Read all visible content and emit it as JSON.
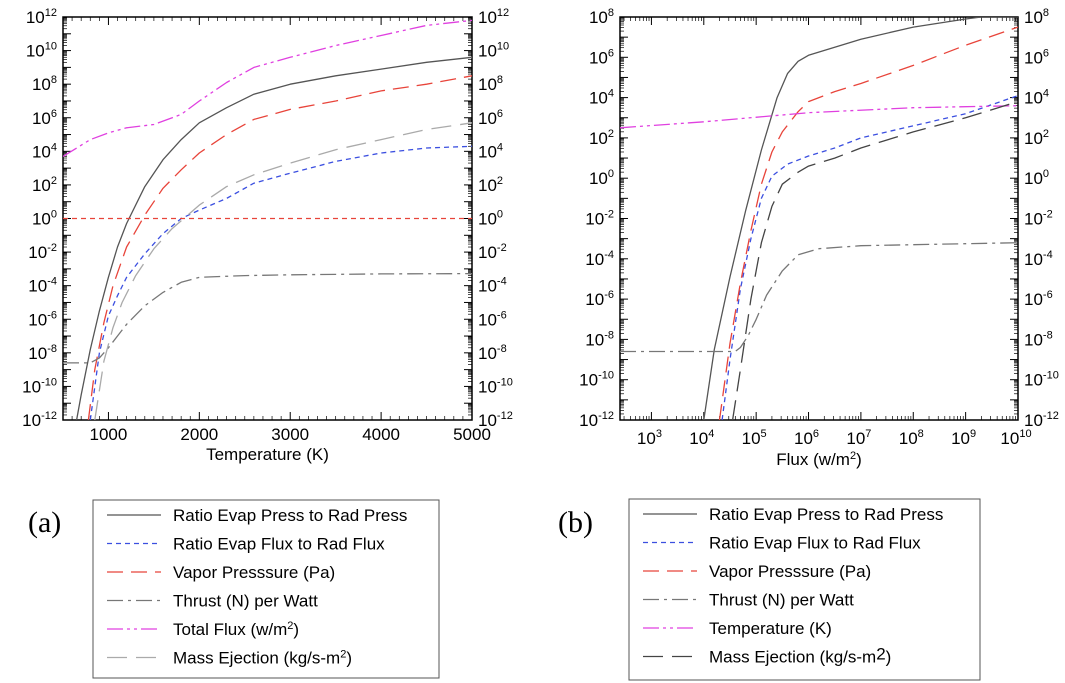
{
  "panels": [
    {
      "tag": "(a)",
      "chart_data": {
        "type": "line",
        "xlabel": "Temperature (K)",
        "ylabel": "",
        "xscale": "linear",
        "yscale": "log",
        "xlim": [
          500,
          5000
        ],
        "ylim_exp": [
          -12,
          12
        ],
        "x_ticks": [
          {
            "value": 1000,
            "label": "1000"
          },
          {
            "value": 2000,
            "label": "2000"
          },
          {
            "value": 3000,
            "label": "3000"
          },
          {
            "value": 4000,
            "label": "4000"
          },
          {
            "value": 5000,
            "label": "5000"
          }
        ],
        "y_ticks": [
          {
            "exp": -12,
            "base": "10",
            "sup": "-12"
          },
          {
            "exp": -10,
            "base": "10",
            "sup": "-10"
          },
          {
            "exp": -8,
            "base": "10",
            "sup": "-8"
          },
          {
            "exp": -6,
            "base": "10",
            "sup": "-6"
          },
          {
            "exp": -4,
            "base": "10",
            "sup": "-4"
          },
          {
            "exp": -2,
            "base": "10",
            "sup": "-2"
          },
          {
            "exp": 0,
            "base": "10",
            "sup": "0"
          },
          {
            "exp": 2,
            "base": "10",
            "sup": "2"
          },
          {
            "exp": 4,
            "base": "10",
            "sup": "4"
          },
          {
            "exp": 6,
            "base": "10",
            "sup": "6"
          },
          {
            "exp": 8,
            "base": "10",
            "sup": "8"
          },
          {
            "exp": 10,
            "base": "10",
            "sup": "10"
          },
          {
            "exp": 12,
            "base": "10",
            "sup": "12"
          }
        ],
        "series": [
          {
            "name": "Ratio Evap Press to Rad Press",
            "color": "#555555",
            "dash": "solid",
            "x": [
              650,
              700,
              800,
              900,
              1000,
              1100,
              1200,
              1400,
              1600,
              1800,
              2000,
              2300,
              2600,
              3000,
              3500,
              4000,
              4500,
              5000
            ],
            "y": [
              -12,
              -10.5,
              -7.8,
              -5.5,
              -3.5,
              -1.7,
              -0.3,
              1.9,
              3.5,
              4.7,
              5.7,
              6.6,
              7.4,
              8.0,
              8.5,
              8.9,
              9.3,
              9.6
            ]
          },
          {
            "name": "Ratio Evap Flux to Rad Flux",
            "color": "#3b4fe0",
            "dash": "blue",
            "x": [
              800,
              900,
              1000,
              1100,
              1200,
              1400,
              1600,
              1800,
              2000,
              2300,
              2600,
              3000,
              3500,
              4000,
              4500,
              5000
            ],
            "y": [
              -12,
              -8,
              -5.8,
              -4.6,
              -3.5,
              -2.1,
              -0.9,
              0,
              0.5,
              1.2,
              2.1,
              2.7,
              3.4,
              3.9,
              4.2,
              4.3
            ]
          },
          {
            "name": "Vapor Presssure (Pa)",
            "color": "#e8443a",
            "dash": "red",
            "x": [
              780,
              850,
              950,
              1050,
              1200,
              1400,
              1600,
              1800,
              2000,
              2300,
              2600,
              3000,
              3500,
              4000,
              4500,
              5000
            ],
            "y": [
              -12,
              -9,
              -6.2,
              -4.0,
              -1.7,
              0.2,
              1.8,
              2.9,
              3.9,
              5.0,
              5.9,
              6.5,
              7.0,
              7.6,
              8.0,
              8.5
            ]
          },
          {
            "name": "Thrust (N) per Watt",
            "color": "#777777",
            "dash": "dashdot",
            "x": [
              500,
              800,
              900,
              1000,
              1100,
              1200,
              1400,
              1600,
              1800,
              2000,
              2500,
              3000,
              4000,
              5000
            ],
            "y": [
              -8.6,
              -8.6,
              -8.3,
              -7.7,
              -7.0,
              -6.3,
              -5.2,
              -4.4,
              -3.8,
              -3.5,
              -3.4,
              -3.35,
              -3.3,
              -3.28
            ]
          },
          {
            "name": "Total Flux (w/m²)",
            "color": "#e040e0",
            "dash": "dashdotdot",
            "x": [
              500,
              800,
              1000,
              1200,
              1500,
              1800,
              2000,
              2300,
              2600,
              3000,
              3500,
              4000,
              4500,
              5000
            ],
            "y": [
              3.7,
              4.7,
              5.1,
              5.4,
              5.6,
              6.2,
              7.0,
              8.1,
              9.0,
              9.6,
              10.3,
              10.9,
              11.5,
              11.8
            ]
          },
          {
            "name": "Mass Ejection (kg/s-m²)",
            "color": "#aaaaaa",
            "dash": "longdash",
            "x": [
              850,
              950,
              1050,
              1150,
              1300,
              1500,
              1700,
              2000,
              2300,
              2600,
              3000,
              3500,
              4000,
              4500,
              5000
            ],
            "y": [
              -12,
              -8.5,
              -6.5,
              -5.0,
              -3.4,
              -1.8,
              -0.6,
              0.8,
              1.9,
              2.6,
              3.3,
              4.1,
              4.7,
              5.3,
              5.7
            ]
          },
          {
            "name": "",
            "color": "#e8443a",
            "dash": "reddot",
            "x": [
              500,
              5000
            ],
            "y": [
              0,
              0
            ]
          }
        ]
      },
      "legend": {
        "entries": [
          {
            "label": "Ratio Evap Press to Rad Press"
          },
          {
            "label": "Ratio Evap Flux to Rad Flux"
          },
          {
            "label": "Vapor Presssure (Pa)"
          },
          {
            "label": "Thrust (N) per Watt"
          },
          {
            "label": "Total Flux (w/m",
            "sup": "2",
            "tail": ")"
          },
          {
            "label": "Mass Ejection (kg/s-m",
            "sup": "2",
            "tail": ")"
          }
        ]
      }
    },
    {
      "tag": "(b)",
      "chart_data": {
        "type": "line",
        "xlabel": "Flux (w/m",
        "xlabel_sup": "2",
        "xlabel_tail": ")",
        "ylabel": "",
        "xscale": "log",
        "yscale": "log",
        "xlim_exp": [
          2.4,
          10
        ],
        "ylim_exp": [
          -12,
          8
        ],
        "x_ticks": [
          {
            "exp": 3,
            "base": "10",
            "sup": "3"
          },
          {
            "exp": 4,
            "base": "10",
            "sup": "4"
          },
          {
            "exp": 5,
            "base": "10",
            "sup": "5"
          },
          {
            "exp": 6,
            "base": "10",
            "sup": "6"
          },
          {
            "exp": 7,
            "base": "10",
            "sup": "7"
          },
          {
            "exp": 8,
            "base": "10",
            "sup": "8"
          },
          {
            "exp": 9,
            "base": "10",
            "sup": "9"
          },
          {
            "exp": 10,
            "base": "10",
            "sup": "10"
          }
        ],
        "y_ticks": [
          {
            "exp": -12,
            "base": "10",
            "sup": "-12"
          },
          {
            "exp": -10,
            "base": "10",
            "sup": "-10"
          },
          {
            "exp": -8,
            "base": "10",
            "sup": "-8"
          },
          {
            "exp": -6,
            "base": "10",
            "sup": "-6"
          },
          {
            "exp": -4,
            "base": "10",
            "sup": "-4"
          },
          {
            "exp": -2,
            "base": "10",
            "sup": "-2"
          },
          {
            "exp": 0,
            "base": "10",
            "sup": "0"
          },
          {
            "exp": 2,
            "base": "10",
            "sup": "2"
          },
          {
            "exp": 4,
            "base": "10",
            "sup": "4"
          },
          {
            "exp": 6,
            "base": "10",
            "sup": "6"
          },
          {
            "exp": 8,
            "base": "10",
            "sup": "8"
          }
        ],
        "series": [
          {
            "name": "Ratio Evap Press to Rad Press",
            "color": "#555555",
            "dash": "solid",
            "xexp": [
              4.0,
              4.2,
              4.5,
              4.8,
              5.1,
              5.4,
              5.6,
              5.8,
              6.0,
              6.5,
              7.0,
              8.0,
              9.0,
              9.3,
              10
            ],
            "y": [
              -12,
              -8.5,
              -4.9,
              -1.6,
              1.4,
              4.0,
              5.2,
              5.8,
              6.1,
              6.5,
              6.9,
              7.5,
              7.9,
              8.0,
              8.0
            ]
          },
          {
            "name": "Ratio Evap Flux to Rad Flux",
            "color": "#3b4fe0",
            "dash": "blue",
            "xexp": [
              4.35,
              4.5,
              4.7,
              4.9,
              5.1,
              5.3,
              5.6,
              6.0,
              6.5,
              7.0,
              8.0,
              9.0,
              10
            ],
            "y": [
              -12,
              -9.0,
              -5.5,
              -3.0,
              -1.0,
              0.1,
              0.7,
              1.1,
              1.5,
              2.0,
              2.6,
              3.2,
              4.1
            ]
          },
          {
            "name": "Vapor Presssure (Pa)",
            "color": "#e8443a",
            "dash": "red",
            "xexp": [
              4.3,
              4.5,
              4.7,
              4.9,
              5.1,
              5.3,
              5.5,
              5.8,
              6.0,
              6.5,
              7.0,
              8.0,
              9.0,
              10
            ],
            "y": [
              -12,
              -8.2,
              -5.2,
              -2.6,
              -0.3,
              1.3,
              2.3,
              3.3,
              3.8,
              4.3,
              4.7,
              5.6,
              6.6,
              7.5
            ]
          },
          {
            "name": "Thrust (N) per Watt",
            "color": "#777777",
            "dash": "dashdot",
            "xexp": [
              2.4,
              4.6,
              4.7,
              4.85,
              5.0,
              5.2,
              5.5,
              5.8,
              6.2,
              7.0,
              8.0,
              9.0,
              10
            ],
            "y": [
              -8.6,
              -8.6,
              -8.4,
              -7.8,
              -7.0,
              -5.8,
              -4.6,
              -3.8,
              -3.5,
              -3.35,
              -3.3,
              -3.25,
              -3.2
            ]
          },
          {
            "name": "Temperature (K)",
            "color": "#e040e0",
            "dash": "dashdotdot",
            "xexp": [
              2.4,
              4.0,
              6.0,
              8.0,
              10
            ],
            "y": [
              2.5,
              2.8,
              3.25,
              3.5,
              3.6
            ]
          },
          {
            "name": "Mass Ejection (kg/s-m2)",
            "color": "#444444",
            "dash": "longdash",
            "xexp": [
              4.55,
              4.7,
              4.9,
              5.1,
              5.3,
              5.5,
              5.8,
              6.0,
              6.5,
              7.0,
              8.0,
              9.0,
              10
            ],
            "y": [
              -12,
              -9.5,
              -6.0,
              -3.2,
              -1.4,
              -0.3,
              0.3,
              0.6,
              1.0,
              1.5,
              2.3,
              3.0,
              3.8
            ]
          }
        ]
      },
      "legend": {
        "entries": [
          {
            "label": "Ratio Evap Press to Rad Press"
          },
          {
            "label": "Ratio Evap Flux to Rad Flux"
          },
          {
            "label": "Vapor Presssure (Pa)"
          },
          {
            "label": "Thrust (N) per Watt"
          },
          {
            "label": "Temperature (K)"
          },
          {
            "label": "Mass Ejection (kg/s-m",
            "bigsup": "2",
            "tail": ")"
          }
        ]
      }
    }
  ]
}
